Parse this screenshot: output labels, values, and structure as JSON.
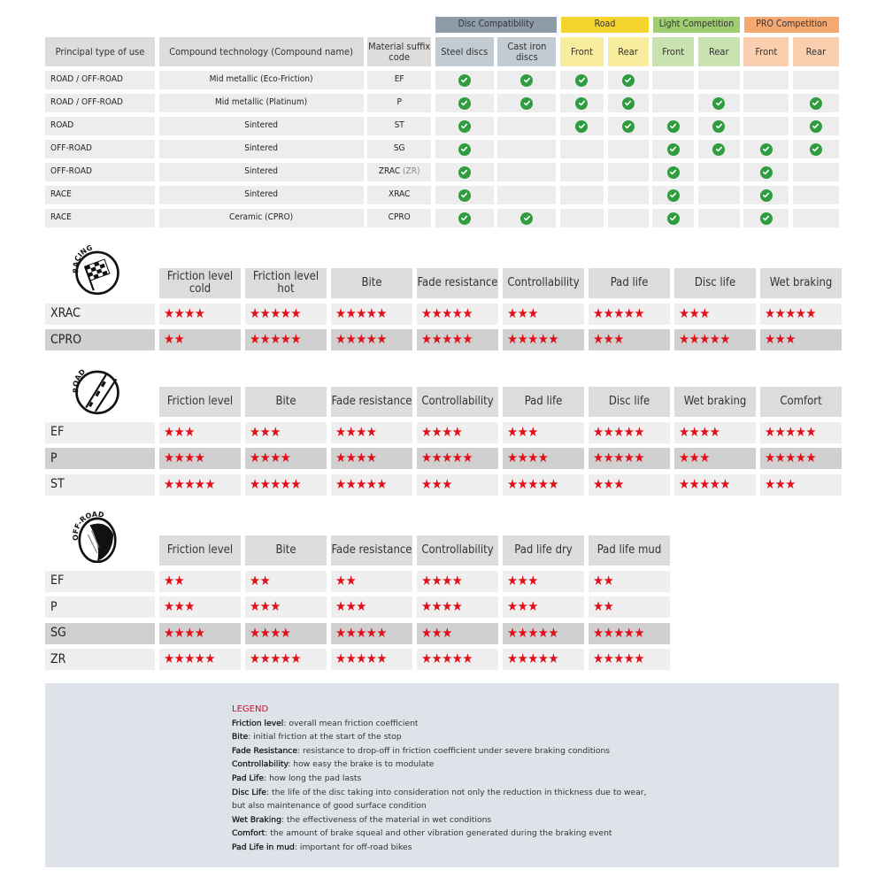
{
  "compat": {
    "groups": [
      {
        "label": "Disc Compatibility",
        "color": "#8e9caa",
        "sub": "#c3cbd2",
        "span": 2
      },
      {
        "label": "Road",
        "color": "#f5d42c",
        "sub": "#f8ec9e",
        "span": 2
      },
      {
        "label": "Light Competition",
        "color": "#9fcd72",
        "sub": "#c8e2b0",
        "span": 2
      },
      {
        "label": "PRO Competition",
        "color": "#f6a871",
        "sub": "#f9cfb0",
        "span": 2
      }
    ],
    "headers": [
      "Principal type of use",
      "Compound technology (Compound name)",
      "Material suffix code",
      "Steel discs",
      "Cast iron discs",
      "Front",
      "Rear",
      "Front",
      "Rear",
      "Front",
      "Rear"
    ],
    "rows": [
      {
        "use": "ROAD / OFF-ROAD",
        "compound": "Mid metallic (Eco-Friction)",
        "code": "EF",
        "suffix": "",
        "checks": [
          1,
          1,
          1,
          1,
          0,
          0,
          0,
          0
        ]
      },
      {
        "use": "ROAD / OFF-ROAD",
        "compound": "Mid metallic (Platinum)",
        "code": "P",
        "suffix": "",
        "checks": [
          1,
          1,
          1,
          1,
          0,
          1,
          0,
          1
        ]
      },
      {
        "use": "ROAD",
        "compound": "Sintered",
        "code": "ST",
        "suffix": "",
        "checks": [
          1,
          0,
          1,
          1,
          1,
          1,
          0,
          1
        ]
      },
      {
        "use": "OFF-ROAD",
        "compound": "Sintered",
        "code": "SG",
        "suffix": "",
        "checks": [
          1,
          0,
          0,
          0,
          1,
          1,
          1,
          1
        ]
      },
      {
        "use": "OFF-ROAD",
        "compound": "Sintered",
        "code": "ZRAC",
        "suffix": " (ZR)",
        "checks": [
          1,
          0,
          0,
          0,
          1,
          0,
          1,
          0
        ]
      },
      {
        "use": "RACE",
        "compound": "Sintered",
        "code": "XRAC",
        "suffix": "",
        "checks": [
          1,
          0,
          0,
          0,
          1,
          0,
          1,
          0
        ]
      },
      {
        "use": "RACE",
        "compound": "Ceramic (CPRO)",
        "code": "CPRO",
        "suffix": "",
        "checks": [
          1,
          1,
          0,
          0,
          1,
          0,
          1,
          0
        ]
      }
    ],
    "check_color": "#2e9c3f"
  },
  "ratings": [
    {
      "icon_label": "RACING",
      "icon": "checkered-flag-icon",
      "headers": [
        "Friction level cold",
        "Friction level hot",
        "Bite",
        "Fade resistance",
        "Controllability",
        "Pad life",
        "Disc life",
        "Wet braking"
      ],
      "rows": [
        {
          "name": "XRAC",
          "stars": [
            4,
            5,
            5,
            5,
            3,
            5,
            3,
            5
          ],
          "dark": false
        },
        {
          "name": "CPRO",
          "stars": [
            2,
            5,
            5,
            5,
            5,
            3,
            5,
            3
          ],
          "dark": true
        }
      ]
    },
    {
      "icon_label": "ROAD",
      "icon": "road-icon",
      "headers": [
        "Friction level",
        "Bite",
        "Fade resistance",
        "Controllability",
        "Pad life",
        "Disc life",
        "Wet braking",
        "Comfort"
      ],
      "rows": [
        {
          "name": "EF",
          "stars": [
            3,
            3,
            4,
            4,
            3,
            5,
            4,
            5
          ],
          "dark": false
        },
        {
          "name": "P",
          "stars": [
            4,
            4,
            4,
            5,
            4,
            5,
            3,
            5
          ],
          "dark": true
        },
        {
          "name": "ST",
          "stars": [
            5,
            5,
            5,
            3,
            5,
            3,
            5,
            3
          ],
          "dark": false
        }
      ]
    },
    {
      "icon_label": "OFF-ROAD",
      "icon": "off-road-icon",
      "headers": [
        "Friction level",
        "Bite",
        "Fade resistance",
        "Controllability",
        "Pad life dry",
        "Pad life mud"
      ],
      "rows": [
        {
          "name": "EF",
          "stars": [
            2,
            2,
            2,
            4,
            3,
            2
          ],
          "dark": false
        },
        {
          "name": "P",
          "stars": [
            3,
            3,
            3,
            4,
            3,
            2
          ],
          "dark": false
        },
        {
          "name": "SG",
          "stars": [
            4,
            4,
            5,
            3,
            5,
            5
          ],
          "dark": true
        },
        {
          "name": "ZR",
          "stars": [
            5,
            5,
            5,
            5,
            5,
            5
          ],
          "dark": false
        }
      ]
    }
  ],
  "star_color": "#e0101a",
  "legend": {
    "title": "LEGEND",
    "items": [
      {
        "term": "Friction level",
        "desc": ": overall mean friction coefficient"
      },
      {
        "term": "Bite",
        "desc": ": initial friction at the start of the stop"
      },
      {
        "term": "Fade Resistance",
        "desc": ": resistance to drop-off in friction coefficient under severe braking conditions"
      },
      {
        "term": "Controllability",
        "desc": ": how easy the brake is to modulate"
      },
      {
        "term": "Pad Life",
        "desc": ": how long the pad lasts"
      },
      {
        "term": "Disc Life",
        "desc": ": the life of the disc taking into consideration not only the reduction in thickness due to wear,"
      },
      {
        "term": "",
        "desc": "but also maintenance of good surface condition"
      },
      {
        "term": "Wet Braking",
        "desc": ": the effectiveness of the material in wet conditions"
      },
      {
        "term": "Comfort",
        "desc": ": the amount of brake squeal and other vibration generated during the braking event"
      },
      {
        "term": "Pad Life in mud",
        "desc": ": important for off-road bikes"
      }
    ]
  }
}
